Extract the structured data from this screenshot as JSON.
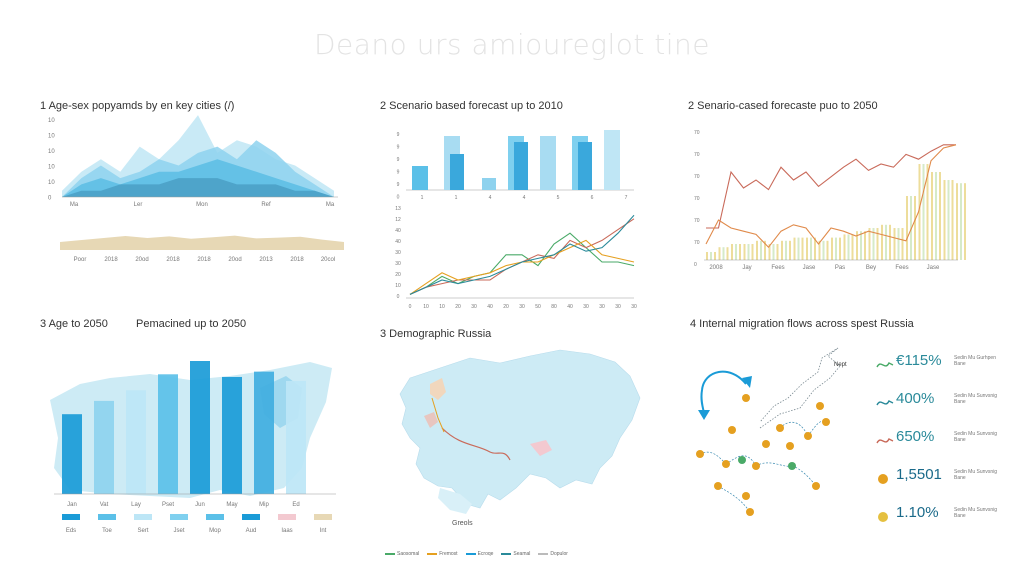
{
  "title": "Deano urs amioureglot tine",
  "panels": {
    "p1": {
      "title": "1 Age-sex popyamds by en key cities (/)",
      "yticks": [
        "10",
        "10",
        "10",
        "10",
        "10",
        "0"
      ],
      "xticks1": [
        "Ma",
        "Ler",
        "Mon",
        "Ref",
        "Ma"
      ],
      "xticks2": [
        "Poor",
        "2018",
        "20od",
        "2018",
        "2018",
        "20od",
        "2013",
        "2018",
        "20col"
      ]
    },
    "p2": {
      "title": "2 Scenario based forecast up to 2010",
      "bar_yticks": [
        "9",
        "9",
        "9",
        "9",
        "9",
        "0"
      ],
      "bar_xticks": [
        "1",
        "1",
        "4",
        "4",
        "5",
        "6",
        "7"
      ],
      "line_yticks": [
        "13",
        "12",
        "40",
        "40",
        "30",
        "30",
        "20",
        "10",
        "0"
      ],
      "line_xticks": [
        "0",
        "10",
        "10",
        "20",
        "30",
        "40",
        "20",
        "30",
        "50",
        "80",
        "40",
        "30",
        "30",
        "30",
        "30"
      ]
    },
    "p3": {
      "title": "2 Senario-cased forecaste puo to 2050",
      "yticks": [
        "70",
        "70",
        "70",
        "70",
        "70",
        "70",
        "0"
      ],
      "xticks": [
        "2008",
        "Jay",
        "Fees",
        "Jase",
        "Pas",
        "Bey",
        "Fees",
        "Jase"
      ]
    },
    "p4": {
      "title": "3 Age to 2050",
      "subtitle": "Pemacined up to 2050",
      "xticks": [
        "Jan",
        "Vat",
        "Lay",
        "Pset",
        "Jun",
        "May",
        "Mip",
        "Ed"
      ],
      "legend": [
        "Eds",
        "Toe",
        "Sert",
        "Jset",
        "Mop",
        "Aud",
        "Iaas",
        "Int"
      ]
    },
    "p5": {
      "title": "3 Demographic Russia",
      "caption": "Greols",
      "legend": [
        "Saosomal",
        "Fremost",
        "Ecroqe",
        "Seamal",
        "Dopulor"
      ]
    },
    "p6": {
      "title": "4 Internal migration flows across spest Russia",
      "map_label": "Nept",
      "stats": [
        {
          "value": "€115%",
          "note": "Sedin Mu Gurhpen Bane"
        },
        {
          "value": "400%",
          "note": "Sedin Mu Sunvsnig Bane"
        },
        {
          "value": "650%",
          "note": "Sedin Mu Sunvsnig Bane"
        },
        {
          "value": "1,5501",
          "note": "Sedin Mu Sunvsnig Bane"
        },
        {
          "value": "1.10%",
          "note": "Sedin Mu Sunvsnig Bane"
        }
      ]
    }
  },
  "colors": {
    "sky": "#7fd0ef",
    "mid": "#40aee0",
    "deep": "#1a9bd7",
    "pale": "#bde6f6",
    "sand": "#e7d8b5",
    "red": "#c96a5a",
    "orange": "#e5a020",
    "green": "#4aaa68",
    "teal": "#2a8a9a",
    "mapfill": "#cdebf5"
  },
  "chart_data": [
    {
      "type": "area",
      "title": "1 Age-sex popyamds by en key cities (/)",
      "x": [
        0,
        1,
        2,
        3,
        4,
        5,
        6,
        7,
        8,
        9,
        10,
        11,
        12,
        13,
        14
      ],
      "series": [
        {
          "values": [
            1,
            4,
            6,
            4,
            8,
            6,
            9,
            13,
            7,
            9,
            8,
            6,
            5,
            3,
            1
          ]
        },
        {
          "values": [
            0,
            3,
            5,
            3,
            4,
            6,
            5,
            7,
            8,
            6,
            9,
            7,
            4,
            2,
            0
          ]
        },
        {
          "values": [
            0,
            2,
            3,
            2,
            3,
            4,
            4,
            5,
            6,
            5,
            4,
            3,
            2,
            1,
            0
          ]
        },
        {
          "values": [
            0,
            1,
            1,
            2,
            2,
            2,
            3,
            3,
            3,
            2,
            2,
            2,
            1,
            1,
            0
          ]
        }
      ]
    },
    {
      "type": "area",
      "x": [
        0,
        1,
        2,
        3,
        4,
        5,
        6,
        7,
        8,
        9,
        10,
        11,
        12,
        13
      ],
      "values": [
        2,
        2.5,
        3,
        3.5,
        3,
        3.4,
        2.8,
        3.2,
        3.6,
        2.9,
        3.1,
        3.3,
        2.6,
        2
      ]
    },
    {
      "type": "bar",
      "title": "2 Scenario based forecast up to 2010",
      "series": [
        {
          "values": [
            4,
            9,
            0,
            9,
            9,
            9,
            10
          ]
        },
        {
          "values": [
            0,
            6,
            2,
            8,
            0,
            8,
            0
          ]
        }
      ]
    },
    {
      "type": "line",
      "x": [
        0,
        1,
        2,
        3,
        4,
        5,
        6,
        7,
        8,
        9,
        10,
        11,
        12,
        13,
        14
      ],
      "series": [
        {
          "values": [
            1,
            3,
            6,
            4,
            6,
            7,
            12,
            12,
            9,
            15,
            18,
            14,
            10,
            10,
            9
          ]
        },
        {
          "values": [
            1,
            3,
            4,
            5,
            5,
            5,
            8,
            10,
            12,
            11,
            16,
            14,
            16,
            19,
            22
          ]
        },
        {
          "values": [
            1,
            4,
            7,
            5,
            6,
            7,
            9,
            10,
            10,
            12,
            14,
            16,
            12,
            11,
            10
          ]
        },
        {
          "values": [
            1,
            3,
            5,
            4,
            5,
            6,
            8,
            10,
            11,
            12,
            15,
            13,
            14,
            18,
            23
          ]
        }
      ]
    },
    {
      "type": "line",
      "title": "2 Senario-cased forecaste puo to 2050",
      "x": [
        0,
        1,
        2,
        3,
        4,
        5,
        6,
        7,
        8,
        9,
        10,
        11,
        12,
        13,
        14,
        15,
        16,
        17,
        18,
        19,
        20
      ],
      "series": [
        {
          "values": [
            20,
            20,
            55,
            45,
            50,
            44,
            58,
            50,
            55,
            46,
            52,
            58,
            63,
            56,
            60,
            58,
            66,
            63,
            68,
            72,
            72
          ]
        },
        {
          "values": [
            10,
            25,
            20,
            18,
            16,
            8,
            18,
            22,
            20,
            10,
            20,
            18,
            15,
            18,
            16,
            14,
            12,
            30,
            62,
            70,
            72
          ]
        },
        {
          "values": [
            5,
            8,
            10,
            10,
            12,
            10,
            12,
            14,
            14,
            12,
            14,
            16,
            18,
            20,
            22,
            20,
            40,
            60,
            55,
            50,
            48
          ]
        }
      ]
    },
    {
      "type": "bar",
      "title": "3 Age to 2050",
      "categories": [
        "Jan",
        "Vat",
        "Lay",
        "Pset",
        "Jun",
        "May",
        "Mip",
        "Ed"
      ],
      "values": [
        60,
        70,
        78,
        90,
        100,
        88,
        92,
        85
      ]
    }
  ]
}
